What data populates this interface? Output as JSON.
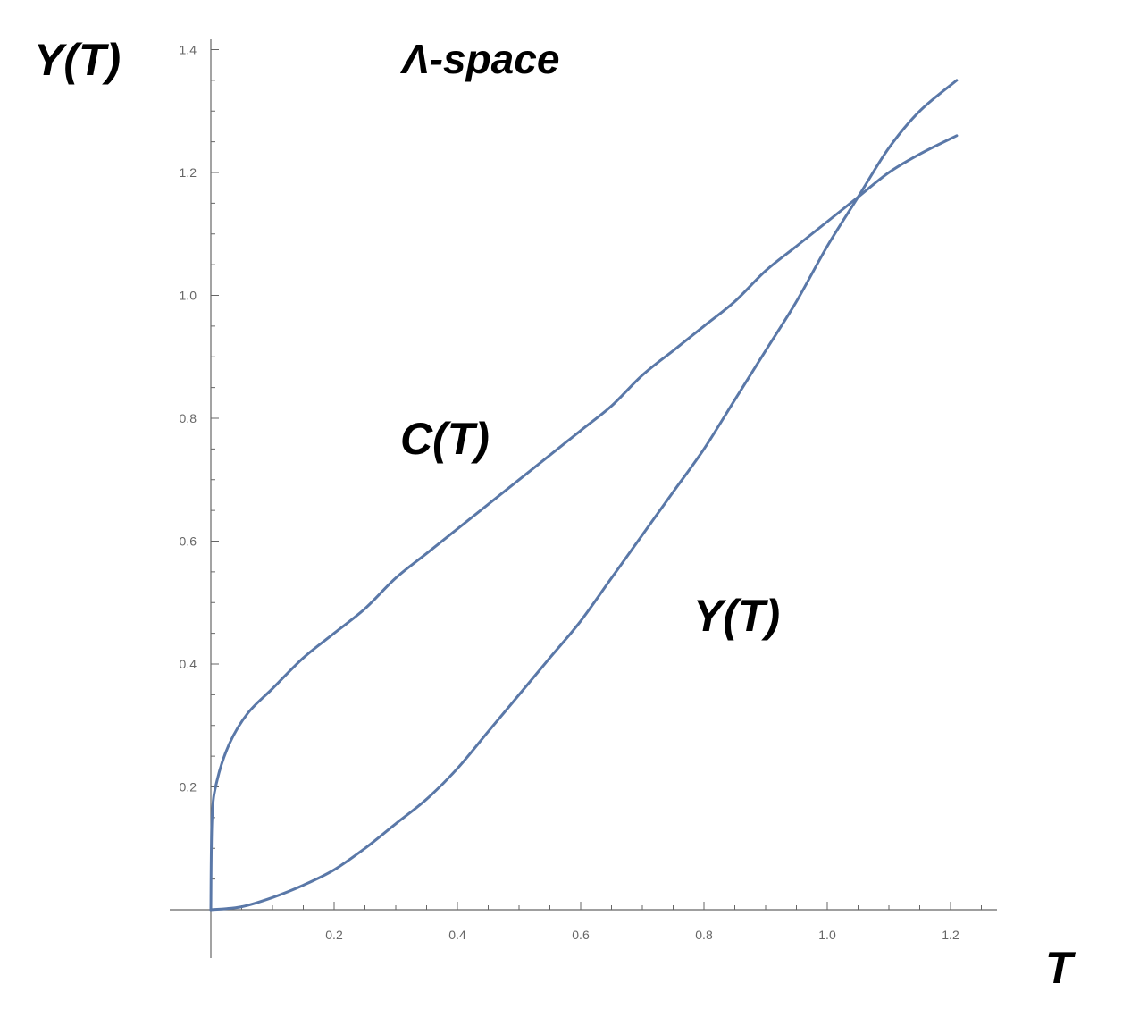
{
  "chart_data": {
    "type": "line",
    "title": "Λ-space",
    "xlabel": "T",
    "ylabel": "Y(T)",
    "xlim": [
      0,
      1.27
    ],
    "ylim": [
      0,
      1.42
    ],
    "x_ticks": [
      0.2,
      0.4,
      0.6,
      0.8,
      1.0,
      1.2
    ],
    "x_tick_labels": [
      "0.2",
      "0.4",
      "0.6",
      "0.8",
      "1.0",
      "1.2"
    ],
    "y_ticks": [
      0.2,
      0.4,
      0.6,
      0.8,
      1.0,
      1.2,
      1.4
    ],
    "y_tick_labels": [
      "0.2",
      "0.4",
      "0.6",
      "0.8",
      "1.0",
      "1.2",
      "1.4"
    ],
    "grid": false,
    "line_color": "#5a78a8",
    "series": [
      {
        "name": "C(T)",
        "x": [
          0,
          0.002,
          0.01,
          0.03,
          0.06,
          0.1,
          0.15,
          0.2,
          0.25,
          0.3,
          0.35,
          0.4,
          0.45,
          0.5,
          0.55,
          0.6,
          0.65,
          0.7,
          0.75,
          0.8,
          0.85,
          0.9,
          0.95,
          1.0,
          1.05,
          1.1,
          1.15,
          1.21
        ],
        "y": [
          0,
          0.15,
          0.21,
          0.27,
          0.32,
          0.36,
          0.41,
          0.45,
          0.49,
          0.54,
          0.58,
          0.62,
          0.66,
          0.7,
          0.74,
          0.78,
          0.82,
          0.87,
          0.91,
          0.95,
          0.99,
          1.04,
          1.08,
          1.12,
          1.16,
          1.2,
          1.23,
          1.26
        ]
      },
      {
        "name": "Y(T)",
        "x": [
          0,
          0.05,
          0.1,
          0.15,
          0.2,
          0.25,
          0.3,
          0.35,
          0.4,
          0.45,
          0.5,
          0.55,
          0.6,
          0.65,
          0.7,
          0.75,
          0.8,
          0.85,
          0.9,
          0.95,
          1.0,
          1.05,
          1.1,
          1.15,
          1.21
        ],
        "y": [
          0,
          0.005,
          0.02,
          0.04,
          0.065,
          0.1,
          0.14,
          0.18,
          0.23,
          0.29,
          0.35,
          0.41,
          0.47,
          0.54,
          0.61,
          0.68,
          0.75,
          0.83,
          0.91,
          0.99,
          1.08,
          1.16,
          1.24,
          1.3,
          1.35
        ]
      }
    ],
    "annotations": [
      "C(T)",
      "Y(T)"
    ]
  }
}
